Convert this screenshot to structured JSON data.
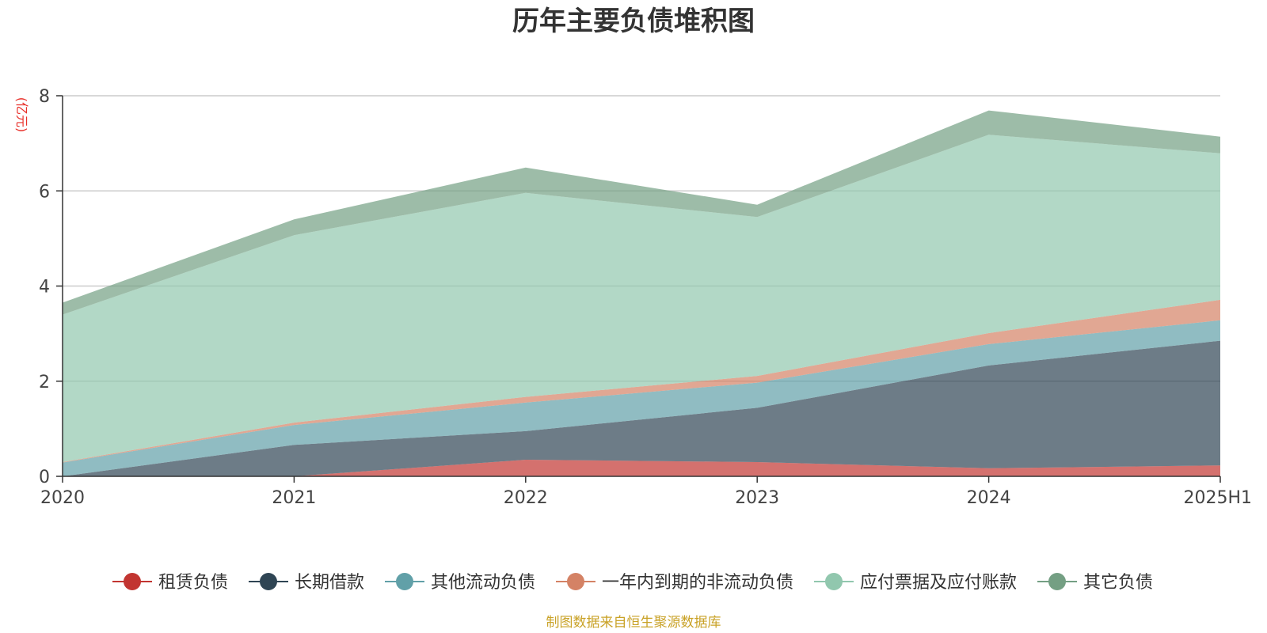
{
  "chart_data": {
    "type": "area",
    "stacked": true,
    "title": "历年主要负债堆积图",
    "unit_label": "(亿元)",
    "x": [
      "2020",
      "2021",
      "2022",
      "2023",
      "2024",
      "2025H1"
    ],
    "ylim": [
      0,
      8
    ],
    "yticks": [
      0,
      2,
      4,
      6,
      8
    ],
    "grid": true,
    "legend_position": "bottom",
    "series": [
      {
        "name": "租赁负债",
        "color": "#c23531",
        "values": [
          0,
          0,
          0.35,
          0.3,
          0.17,
          0.23
        ]
      },
      {
        "name": "长期借款",
        "color": "#2f4554",
        "values": [
          0,
          0.66,
          0.6,
          1.14,
          2.16,
          2.62
        ]
      },
      {
        "name": "其他流动负债",
        "color": "#61a0a8",
        "values": [
          0.29,
          0.42,
          0.6,
          0.53,
          0.45,
          0.43
        ]
      },
      {
        "name": "一年内到期的非流动负债",
        "color": "#d48265",
        "values": [
          0.01,
          0.05,
          0.12,
          0.14,
          0.23,
          0.43
        ]
      },
      {
        "name": "应付票据及应付账款",
        "color": "#91c7ae",
        "values": [
          3.1,
          3.94,
          4.29,
          3.34,
          4.17,
          3.08
        ]
      },
      {
        "name": "其它负债",
        "color": "#749f83",
        "values": [
          0.25,
          0.33,
          0.53,
          0.26,
          0.51,
          0.35
        ]
      }
    ],
    "source_note": "制图数据来自恒生聚源数据库"
  }
}
